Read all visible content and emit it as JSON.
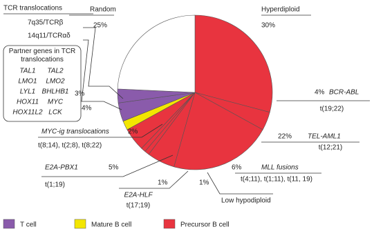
{
  "chart_data": {
    "type": "pie",
    "heading": "TCR translocations",
    "box_title": "Partner genes in TCR translocations",
    "box_genes": [
      [
        "TAL1",
        "LMO1",
        "LYL1",
        "HOX11",
        "HOX11L2"
      ],
      [
        "TAL2",
        "LMO2",
        "BHLHB1",
        "MYC",
        "LCK"
      ]
    ],
    "categories": [
      "Hyperdiploid",
      "BCR-ABL",
      "TEL-AML1",
      "MLL fusions",
      "Low hypodiploid",
      "E2A-HLF",
      "E2A-PBX1",
      "MYC-ig translocations",
      "14q11/TCRαδ",
      "7q35/TCRβ",
      "Random"
    ],
    "values": [
      30,
      4,
      22,
      6,
      1,
      1,
      5,
      2,
      4,
      3,
      25
    ],
    "value_labels": [
      "30%",
      "4%",
      "22%",
      "6%",
      "1%",
      "1%",
      "5%",
      "2%",
      "4%",
      "3%",
      "25%"
    ],
    "details": [
      null,
      "t(19;22)",
      "t(12;21)",
      "t(4;11), t(1;11), t(11, 19)",
      null,
      "t(17;19)",
      "t(1;19)",
      "t(8;14), t(2;8), t(8;22)",
      null,
      null,
      null
    ],
    "colors": [
      "#e8343f",
      "#e8343f",
      "#e8343f",
      "#e8343f",
      "#e8343f",
      "#e8343f",
      "#e8343f",
      "#f3e600",
      "#8a5bab",
      "#8a5bab",
      "#ffffff"
    ],
    "legend": [
      {
        "name": "T cell",
        "color": "#8a5bab"
      },
      {
        "name": "Mature B cell",
        "color": "#f3e600"
      },
      {
        "name": "Precursor B cell",
        "color": "#e8343f"
      }
    ]
  }
}
